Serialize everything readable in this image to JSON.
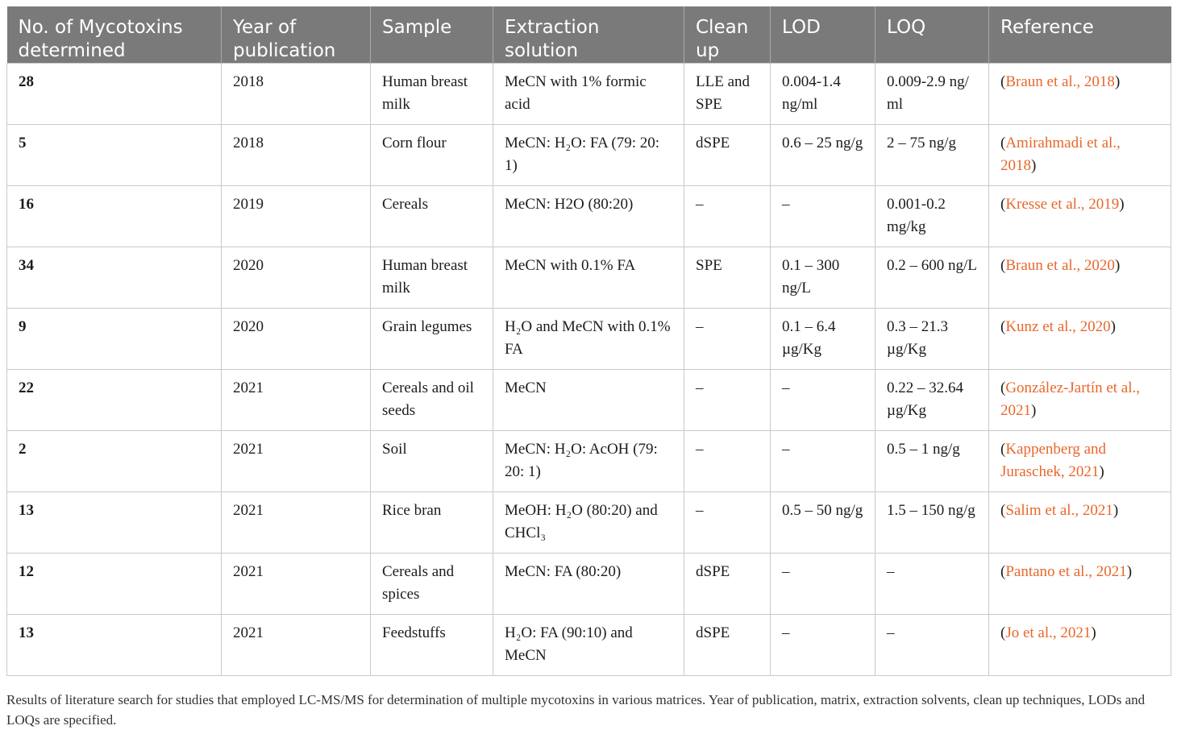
{
  "headers": [
    "No. of Mycotoxins determined",
    "Year of publication",
    "Sample",
    "Extraction solution",
    "Clean up",
    "LOD",
    "LOQ",
    "Reference"
  ],
  "rows": [
    {
      "n": "28",
      "year": "2018",
      "sample": "Human breast milk",
      "extraction": "MeCN with 1% formic acid",
      "cleanup": "LLE and SPE",
      "lod": "0.004-1.4 ng/ml",
      "loq": "0.009-2.9 ng/ ml",
      "ref": "Braun et al., 2018"
    },
    {
      "n": "5",
      "year": "2018",
      "sample": "Corn flour",
      "extraction": "MeCN: H₂O: FA (79: 20: 1)",
      "cleanup": "dSPE",
      "lod": "0.6 – 25 ng/g",
      "loq": "2 – 75 ng/g",
      "ref": "Amirahmadi et al., 2018"
    },
    {
      "n": "16",
      "year": "2019",
      "sample": "Cereals",
      "extraction": "MeCN: H2O (80:20)",
      "cleanup": "–",
      "lod": "–",
      "loq": "0.001-0.2 mg/kg",
      "ref": "Kresse et al., 2019"
    },
    {
      "n": "34",
      "year": "2020",
      "sample": "Human breast milk",
      "extraction": "MeCN with 0.1% FA",
      "cleanup": "SPE",
      "lod": "0.1 – 300 ng/L",
      "loq": "0.2 – 600 ng/L",
      "ref": "Braun et al., 2020"
    },
    {
      "n": "9",
      "year": "2020",
      "sample": "Grain legumes",
      "extraction": "H₂O and MeCN with 0.1% FA",
      "cleanup": "–",
      "lod": "0.1 – 6.4 µg/Kg",
      "loq": "0.3 – 21.3 µg/Kg",
      "ref": "Kunz et al., 2020"
    },
    {
      "n": "22",
      "year": "2021",
      "sample": "Cereals and oil seeds",
      "extraction": "MeCN",
      "cleanup": "–",
      "lod": "–",
      "loq": "0.22 – 32.64 µg/Kg",
      "ref": "González-Jartín et al., 2021"
    },
    {
      "n": "2",
      "year": "2021",
      "sample": "Soil",
      "extraction": "MeCN: H₂O: AcOH (79: 20: 1)",
      "cleanup": "–",
      "lod": "–",
      "loq": "0.5 – 1 ng/g",
      "ref": "Kappenberg and Juraschek, 2021"
    },
    {
      "n": "13",
      "year": "2021",
      "sample": "Rice bran",
      "extraction": "MeOH: H₂O (80:20) and CHCl₃",
      "cleanup": "–",
      "lod": "0.5 – 50 ng/g",
      "loq": "1.5 – 150 ng/g",
      "ref": "Salim et al., 2021"
    },
    {
      "n": "12",
      "year": "2021",
      "sample": "Cereals and spices",
      "extraction": "MeCN: FA (80:20)",
      "cleanup": "dSPE",
      "lod": "–",
      "loq": "–",
      "ref": "Pantano et al., 2021"
    },
    {
      "n": "13",
      "year": "2021",
      "sample": "Feedstuffs",
      "extraction": "H₂O: FA (90:10) and MeCN",
      "cleanup": "dSPE",
      "lod": "–",
      "loq": "–",
      "ref": "Jo et al., 2021"
    }
  ],
  "caption": "Results of literature search for studies that employed LC-MS/MS for determination of multiple mycotoxins in various matrices. Year of publication, matrix, extraction solvents, clean up techniques, LODs and LOQs are specified."
}
